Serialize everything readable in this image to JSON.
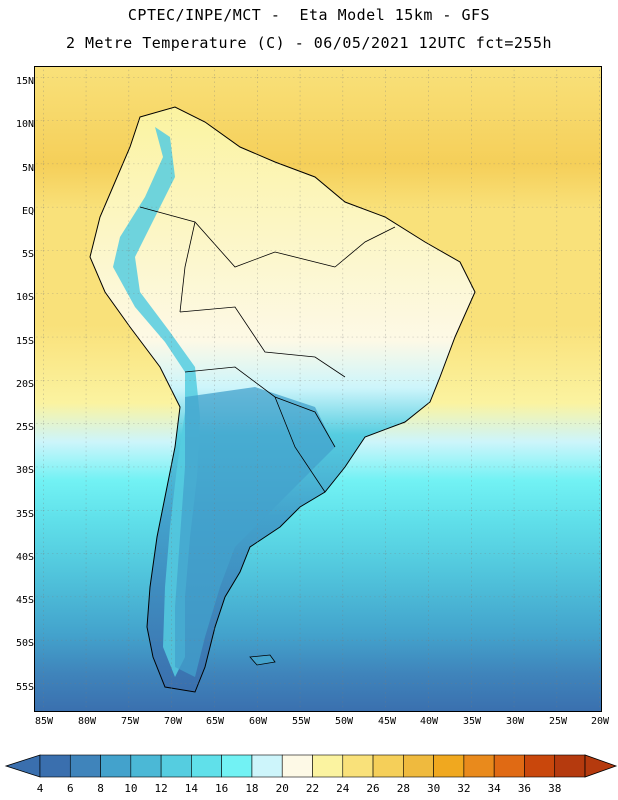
{
  "title": {
    "line1": "CPTEC/INPE/MCT -  Eta Model 15km - GFS",
    "line2": "2 Metre Temperature (C) - 06/05/2021 12UTC fct=255h"
  },
  "axes": {
    "lat_labels": [
      "15N",
      "10N",
      "5N",
      "EQ",
      "5S",
      "10S",
      "15S",
      "20S",
      "25S",
      "30S",
      "35S",
      "40S",
      "45S",
      "50S",
      "55S"
    ],
    "lon_labels": [
      "85W",
      "80W",
      "75W",
      "70W",
      "65W",
      "60W",
      "55W",
      "50W",
      "45W",
      "40W",
      "35W",
      "30W",
      "25W",
      "20W"
    ]
  },
  "colorbar": {
    "ticks": [
      "4",
      "6",
      "8",
      "10",
      "12",
      "14",
      "16",
      "18",
      "20",
      "22",
      "24",
      "26",
      "28",
      "30",
      "32",
      "34",
      "36",
      "38"
    ],
    "colors": [
      "#3a6fae",
      "#3f84bb",
      "#43a2cc",
      "#4bb8d6",
      "#55cde0",
      "#60e0ea",
      "#72f2f4",
      "#cdf5fb",
      "#fdf9e6",
      "#fbf3a0",
      "#f9e17a",
      "#f5cf59",
      "#efba3e",
      "#f0a81f",
      "#e98a1c",
      "#e06a14",
      "#c9470c",
      "#b53a0e"
    ],
    "low_color": "#3a6fae",
    "high_color": "#b53a0e"
  },
  "map": {
    "ocean_north_color": "#f9e17a",
    "ocean_south_cold": "#3a6fae",
    "land_color": "#fdf9e6"
  }
}
